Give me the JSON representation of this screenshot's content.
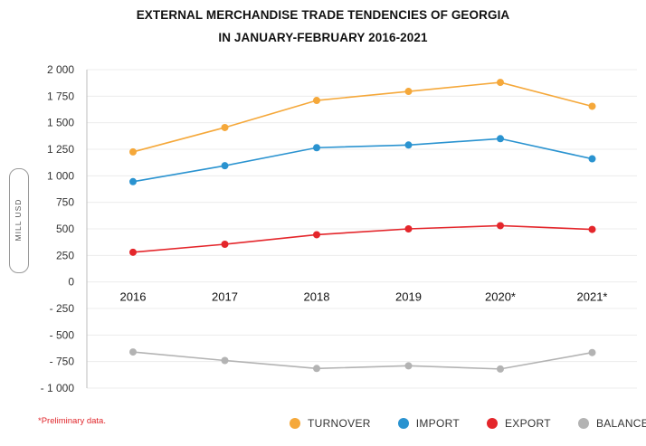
{
  "chart_data": {
    "type": "line",
    "title": "EXTERNAL MERCHANDISE TRADE TENDENCIES OF GEORGIA",
    "subtitle": "IN JANUARY-FEBRUARY 2016-2021",
    "ylabel": "MILL USD",
    "xlabel": "",
    "categories": [
      "2016",
      "2017",
      "2018",
      "2019",
      "2020*",
      "2021*"
    ],
    "ylim": [
      -1000,
      2000
    ],
    "yticks": [
      2000,
      1750,
      1500,
      1250,
      1000,
      750,
      500,
      250,
      0,
      -250,
      -500,
      -750,
      -1000
    ],
    "ytick_labels": [
      "2 000",
      "1 750",
      "1 500",
      "1 250",
      "1 000",
      "750",
      "500",
      "250",
      "0",
      "- 250",
      "- 500",
      "- 750",
      "- 1 000"
    ],
    "grid": true,
    "legend_position": "bottom-right",
    "series": [
      {
        "name": "TURNOVER",
        "color": "#f5a83a",
        "values": [
          1225,
          1455,
          1710,
          1795,
          1880,
          1655
        ]
      },
      {
        "name": "IMPORT",
        "color": "#2a93d0",
        "values": [
          945,
          1095,
          1265,
          1290,
          1350,
          1160
        ]
      },
      {
        "name": "EXPORT",
        "color": "#e4262b",
        "values": [
          280,
          355,
          445,
          500,
          530,
          495
        ]
      },
      {
        "name": "BALANCE",
        "color": "#b3b3b3",
        "values": [
          -660,
          -740,
          -815,
          -790,
          -820,
          -665
        ]
      }
    ],
    "note": "*Preliminary data."
  }
}
